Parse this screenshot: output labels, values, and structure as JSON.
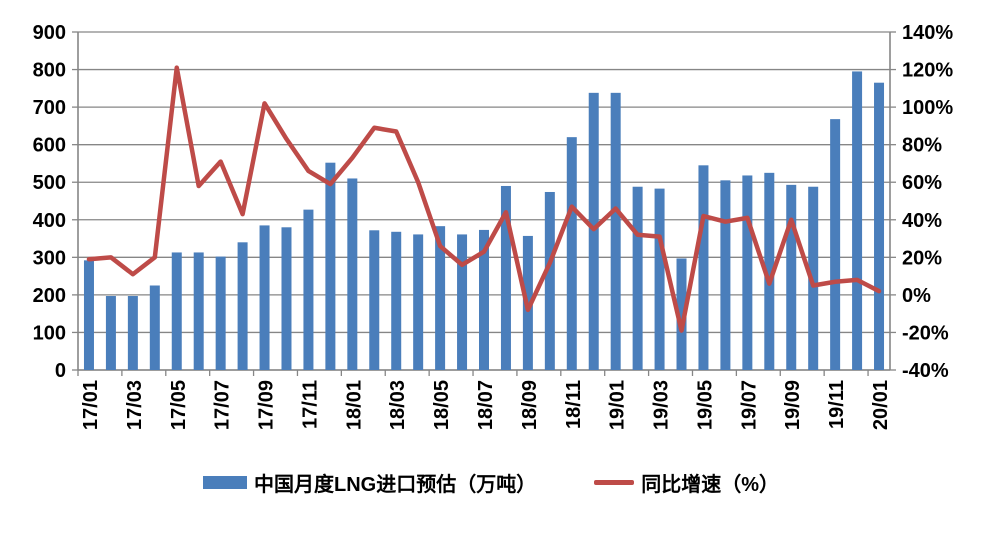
{
  "chart_data": {
    "type": "bar+line combo",
    "title": "",
    "categories": [
      "17/01",
      "17/02",
      "17/03",
      "17/04",
      "17/05",
      "17/06",
      "17/07",
      "17/08",
      "17/09",
      "17/10",
      "17/11",
      "17/12",
      "18/01",
      "18/02",
      "18/03",
      "18/04",
      "18/05",
      "18/06",
      "18/07",
      "18/08",
      "18/09",
      "18/10",
      "18/11",
      "18/12",
      "19/01",
      "19/02",
      "19/03",
      "19/04",
      "19/05",
      "19/06",
      "19/07",
      "19/08",
      "19/09",
      "19/10",
      "19/11",
      "19/12",
      "20/01"
    ],
    "x_label_interval": 2,
    "series": [
      {
        "name": "中国月度LNG进口预估（万吨）",
        "type": "bar",
        "axis": "left",
        "color": "#4A7EBB",
        "values": [
          292,
          197,
          197,
          225,
          313,
          313,
          302,
          340,
          385,
          380,
          427,
          552,
          510,
          372,
          368,
          361,
          383,
          361,
          373,
          490,
          357,
          474,
          620,
          738,
          738,
          488,
          483,
          297,
          545,
          505,
          518,
          525,
          493,
          488,
          668,
          795,
          765
        ]
      },
      {
        "name": "同比增速（%）",
        "type": "line",
        "axis": "right",
        "color": "#BE4B48",
        "values": [
          19,
          20,
          11,
          20,
          121,
          58,
          71,
          43,
          102,
          83,
          66,
          59,
          73,
          89,
          87,
          60,
          26,
          16,
          23,
          44,
          -8,
          17,
          47,
          35,
          46,
          32,
          31,
          -19,
          42,
          39,
          41,
          6,
          40,
          5,
          7,
          8,
          2
        ]
      }
    ],
    "left_axis": {
      "min": 0,
      "max": 900,
      "step": 100,
      "tick_labels": [
        "0",
        "100",
        "200",
        "300",
        "400",
        "500",
        "600",
        "700",
        "800",
        "900"
      ]
    },
    "right_axis": {
      "min": -40,
      "max": 140,
      "step": 20,
      "tick_labels": [
        "-40%",
        "-20%",
        "0%",
        "20%",
        "40%",
        "60%",
        "80%",
        "100%",
        "120%",
        "140%"
      ]
    },
    "grid": true,
    "legend_position": "bottom"
  },
  "colors": {
    "bar": "#4A7EBB",
    "line": "#BE4B48",
    "gridline": "#868686",
    "axis_text": "#000000",
    "background": "#FFFFFF"
  }
}
